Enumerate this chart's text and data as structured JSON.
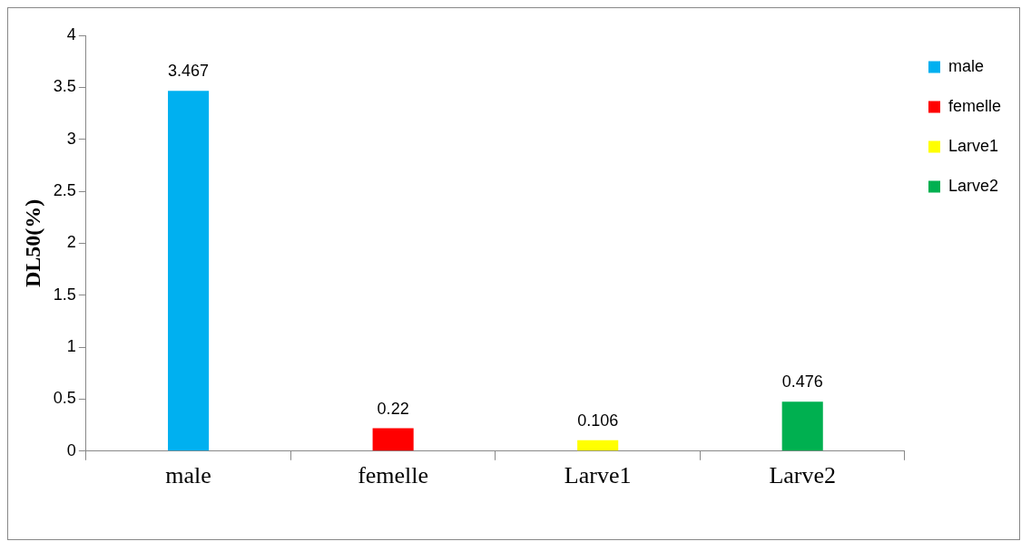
{
  "chart_data": {
    "type": "bar",
    "ylabel": "DL50(%)",
    "categories": [
      "male",
      "femelle",
      "Larve1",
      "Larve2"
    ],
    "series": [
      {
        "name": "male",
        "color": "#00b0f0",
        "values": [
          3.467,
          null,
          null,
          null
        ]
      },
      {
        "name": "femelle",
        "color": "#ff0000",
        "values": [
          null,
          0.22,
          null,
          null
        ]
      },
      {
        "name": "Larve1",
        "color": "#ffff00",
        "values": [
          null,
          null,
          0.106,
          null
        ]
      },
      {
        "name": "Larve2",
        "color": "#00b050",
        "values": [
          null,
          null,
          null,
          0.476
        ]
      }
    ],
    "ylim": [
      0,
      4
    ],
    "yticks": [
      0,
      0.5,
      1,
      1.5,
      2,
      2.5,
      3,
      3.5,
      4
    ],
    "data_labels": true,
    "legend": "top right",
    "grid": false
  }
}
